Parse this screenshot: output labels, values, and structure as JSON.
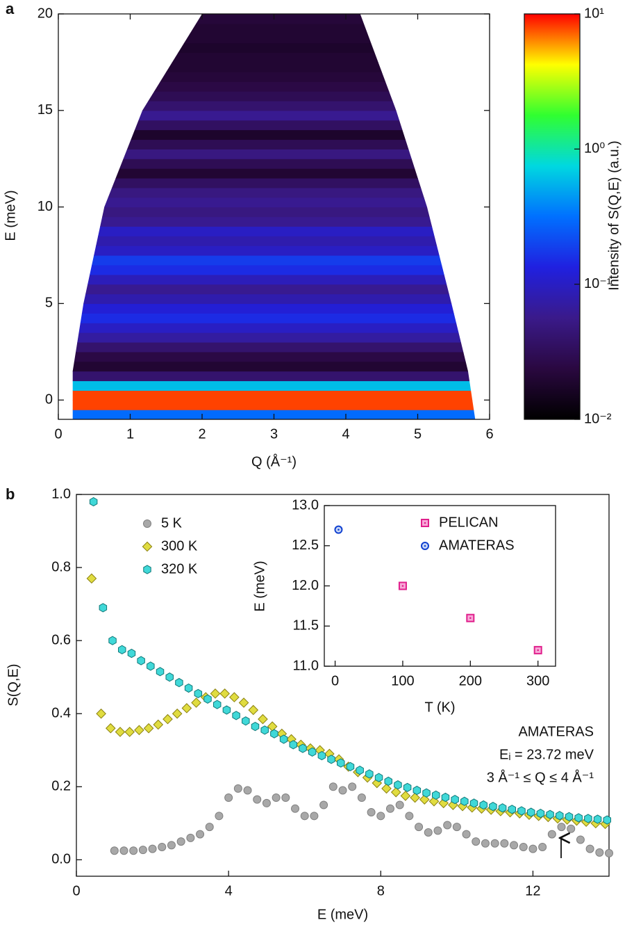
{
  "chart_data": [
    {
      "type": "heatmap",
      "panel": "a",
      "xlabel": "Q (Å⁻¹)",
      "ylabel": "E (meV)",
      "xlim": [
        0,
        6
      ],
      "xticks": [
        0,
        1,
        2,
        3,
        4,
        5,
        6
      ],
      "ylim": [
        -1,
        20
      ],
      "yticks": [
        0,
        5,
        10,
        15,
        20
      ],
      "ybins": [
        -1,
        -0.5,
        0,
        0.5,
        1,
        1.5,
        2,
        2.5,
        3,
        3.5,
        4,
        4.5,
        5,
        5.5,
        6,
        6.5,
        7,
        7.5,
        8,
        8.5,
        9,
        9.5,
        10,
        10.5,
        11,
        11.5,
        12,
        12.5,
        13,
        13.5,
        14,
        14.5,
        15,
        15.5,
        16,
        16.5,
        17,
        17.5,
        18,
        18.5,
        19,
        19.5,
        20
      ],
      "values": [
        0.3,
        8,
        8,
        0.6,
        0.04,
        0.02,
        0.025,
        0.04,
        0.07,
        0.1,
        0.15,
        0.12,
        0.08,
        0.06,
        0.09,
        0.15,
        0.18,
        0.1,
        0.08,
        0.1,
        0.06,
        0.05,
        0.06,
        0.05,
        0.035,
        0.02,
        0.03,
        0.05,
        0.03,
        0.018,
        0.035,
        0.06,
        0.04,
        0.03,
        0.025,
        0.022,
        0.02,
        0.02,
        0.018,
        0.02,
        0.02,
        0.022
      ],
      "coverage": {
        "y": [
          -1,
          1.5,
          5,
          10,
          15,
          20
        ],
        "xmin": [
          0.2,
          0.2,
          0.35,
          0.64,
          1.17,
          2.0
        ],
        "xmax": [
          5.8,
          5.7,
          5.47,
          5.13,
          4.7,
          4.2
        ]
      },
      "colorbar": {
        "label": "Intensity of S(Q,E) (a.u.)",
        "log": true,
        "lim": [
          0.01,
          10
        ],
        "ticks": [
          {
            "value": 0.01,
            "label": "10⁻²"
          },
          {
            "value": 0.1,
            "label": "10⁻¹"
          },
          {
            "value": 1,
            "label": "10⁰"
          },
          {
            "value": 10,
            "label": "10¹"
          }
        ],
        "colors": [
          "#000000",
          "#2a0840",
          "#3a1a8a",
          "#2020e0",
          "#0070ff",
          "#00d8e0",
          "#30ff30",
          "#ffff00",
          "#ff0000"
        ]
      }
    },
    {
      "type": "scatter",
      "panel": "b",
      "xlabel": "E (meV)",
      "ylabel": "S(Q,E)",
      "xlim": [
        0,
        14
      ],
      "xticks": [
        0,
        4,
        8,
        12
      ],
      "ylim": [
        -0.045,
        1.0
      ],
      "yticks": [
        {
          "value": 0,
          "label": "0.0"
        },
        0.2,
        0.4,
        0.6,
        0.8,
        {
          "value": 1,
          "label": "1.0"
        }
      ],
      "legend": "upper left",
      "annotations": [
        "AMATERAS",
        "Eᵢ = 23.72 meV",
        "3 Å⁻¹ ≤ Q ≤ 4 Å⁻¹"
      ],
      "series": [
        {
          "name": "5 K",
          "marker": "circle",
          "color": "#a8a8a8",
          "edgecolor": "#808080",
          "x": [
            1,
            1.25,
            1.5,
            1.75,
            2,
            2.25,
            2.5,
            2.75,
            3,
            3.25,
            3.5,
            3.75,
            4,
            4.25,
            4.5,
            4.75,
            5,
            5.25,
            5.5,
            5.75,
            6,
            6.25,
            6.5,
            6.75,
            7,
            7.25,
            7.5,
            7.75,
            8,
            8.25,
            8.5,
            8.75,
            9,
            9.25,
            9.5,
            9.75,
            10,
            10.25,
            10.5,
            10.75,
            11,
            11.25,
            11.5,
            11.75,
            12,
            12.25,
            12.5,
            12.75,
            13,
            13.25,
            13.5,
            13.75,
            14
          ],
          "values": [
            0.025,
            0.025,
            0.025,
            0.027,
            0.03,
            0.035,
            0.04,
            0.05,
            0.06,
            0.07,
            0.09,
            0.12,
            0.17,
            0.195,
            0.19,
            0.165,
            0.155,
            0.17,
            0.17,
            0.14,
            0.12,
            0.12,
            0.15,
            0.2,
            0.19,
            0.2,
            0.17,
            0.13,
            0.12,
            0.14,
            0.15,
            0.12,
            0.09,
            0.075,
            0.08,
            0.095,
            0.09,
            0.07,
            0.05,
            0.045,
            0.045,
            0.045,
            0.04,
            0.035,
            0.03,
            0.035,
            0.07,
            0.09,
            0.085,
            0.055,
            0.03,
            0.02,
            0.018
          ]
        },
        {
          "name": "300 K",
          "marker": "diamond",
          "color": "#e0dc40",
          "edgecolor": "#8a8010",
          "x": [
            0.4,
            0.65,
            0.9,
            1.15,
            1.4,
            1.65,
            1.9,
            2.15,
            2.4,
            2.65,
            2.9,
            3.15,
            3.4,
            3.65,
            3.9,
            4.15,
            4.4,
            4.65,
            4.9,
            5.15,
            5.4,
            5.65,
            5.9,
            6.15,
            6.4,
            6.65,
            6.9,
            7.15,
            7.4,
            7.65,
            7.9,
            8.15,
            8.4,
            8.65,
            8.9,
            9.15,
            9.4,
            9.65,
            9.9,
            10.15,
            10.4,
            10.65,
            10.9,
            11.15,
            11.4,
            11.65,
            11.9,
            12.15,
            12.4,
            12.65,
            12.9,
            13.15,
            13.4,
            13.65,
            13.9
          ],
          "values": [
            0.77,
            0.4,
            0.36,
            0.35,
            0.35,
            0.355,
            0.36,
            0.37,
            0.385,
            0.4,
            0.415,
            0.43,
            0.445,
            0.455,
            0.455,
            0.445,
            0.43,
            0.41,
            0.385,
            0.365,
            0.345,
            0.33,
            0.315,
            0.305,
            0.3,
            0.29,
            0.275,
            0.255,
            0.24,
            0.225,
            0.21,
            0.195,
            0.185,
            0.175,
            0.17,
            0.165,
            0.16,
            0.155,
            0.15,
            0.147,
            0.143,
            0.14,
            0.137,
            0.133,
            0.13,
            0.127,
            0.123,
            0.12,
            0.117,
            0.113,
            0.11,
            0.107,
            0.104,
            0.1,
            0.098
          ]
        },
        {
          "name": "320 K",
          "marker": "hexagon",
          "color": "#40d8d8",
          "edgecolor": "#107878",
          "x": [
            0.45,
            0.7,
            0.95,
            1.2,
            1.45,
            1.7,
            1.95,
            2.2,
            2.45,
            2.7,
            2.95,
            3.2,
            3.45,
            3.7,
            3.95,
            4.2,
            4.45,
            4.7,
            4.95,
            5.2,
            5.45,
            5.7,
            5.95,
            6.2,
            6.45,
            6.7,
            6.95,
            7.2,
            7.45,
            7.7,
            7.95,
            8.2,
            8.45,
            8.7,
            8.95,
            9.2,
            9.45,
            9.7,
            9.95,
            10.2,
            10.45,
            10.7,
            10.95,
            11.2,
            11.45,
            11.7,
            11.95,
            12.2,
            12.45,
            12.7,
            12.95,
            13.2,
            13.45,
            13.7,
            13.95
          ],
          "values": [
            0.98,
            0.69,
            0.6,
            0.575,
            0.565,
            0.545,
            0.53,
            0.515,
            0.5,
            0.485,
            0.47,
            0.455,
            0.44,
            0.425,
            0.41,
            0.395,
            0.38,
            0.365,
            0.355,
            0.345,
            0.33,
            0.315,
            0.305,
            0.295,
            0.285,
            0.275,
            0.265,
            0.255,
            0.245,
            0.235,
            0.225,
            0.215,
            0.205,
            0.198,
            0.19,
            0.183,
            0.177,
            0.171,
            0.165,
            0.16,
            0.155,
            0.15,
            0.146,
            0.142,
            0.138,
            0.134,
            0.13,
            0.127,
            0.124,
            0.121,
            0.118,
            0.115,
            0.113,
            0.111,
            0.109
          ]
        }
      ]
    },
    {
      "type": "scatter",
      "panel": "inset",
      "xlabel": "T (K)",
      "ylabel": "E (meV)",
      "xlim": [
        -16,
        326
      ],
      "xticks": [
        0,
        100,
        200,
        300
      ],
      "ylim": [
        11,
        13
      ],
      "yticks": [
        {
          "value": 11,
          "label": "11.0"
        },
        11.5,
        {
          "value": 12,
          "label": "12.0"
        },
        12.5,
        {
          "value": 13,
          "label": "13.0"
        }
      ],
      "legend": "upper right",
      "series": [
        {
          "name": "PELICAN",
          "marker": "square-dot",
          "color": "#f8a8d8",
          "edgecolor": "#e0208c",
          "x": [
            100,
            200,
            300
          ],
          "values": [
            12.0,
            11.6,
            11.2
          ]
        },
        {
          "name": "AMATERAS",
          "marker": "circle-dot",
          "color": "#c8d8f8",
          "edgecolor": "#1040d0",
          "x": [
            5
          ],
          "values": [
            12.7
          ]
        }
      ]
    }
  ]
}
